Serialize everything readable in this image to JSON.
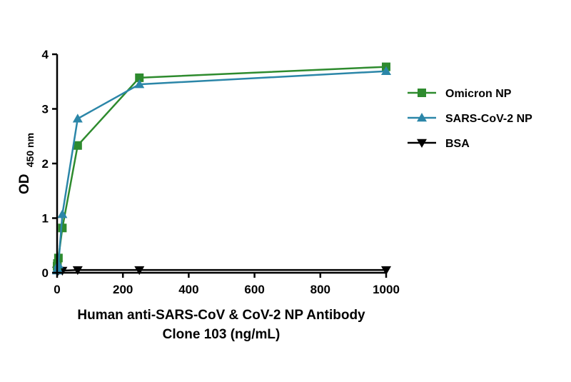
{
  "chart_data": {
    "type": "line",
    "xlabel": [
      "Human anti-SARS-CoV & CoV-2 NP Antibody",
      "Clone 103 (ng/mL)"
    ],
    "ylabel": {
      "main": "OD",
      "sub": "450 nm"
    },
    "xlim": [
      0,
      1000
    ],
    "ylim": [
      0,
      4
    ],
    "xticks": [
      0,
      200,
      400,
      600,
      800,
      1000
    ],
    "yticks": [
      0,
      1,
      2,
      3,
      4
    ],
    "grid": false,
    "legend_position": "right",
    "series": [
      {
        "name": "Omicron NP",
        "color": "#2e8b2e",
        "marker": "square",
        "x": [
          0,
          1,
          4,
          16,
          62.5,
          250,
          1000
        ],
        "y": [
          0.12,
          0.17,
          0.27,
          0.82,
          2.33,
          3.57,
          3.77
        ]
      },
      {
        "name": "SARS-CoV-2 NP",
        "color": "#2b86a8",
        "marker": "triangle-up",
        "x": [
          0,
          1,
          4,
          16,
          62.5,
          250,
          1000
        ],
        "y": [
          0.04,
          0.08,
          0.15,
          1.07,
          2.82,
          3.45,
          3.69
        ]
      },
      {
        "name": "BSA",
        "color": "#000000",
        "marker": "triangle-down",
        "x": [
          0,
          1,
          4,
          16,
          62.5,
          250,
          1000
        ],
        "y": [
          0.04,
          0.04,
          0.04,
          0.04,
          0.05,
          0.05,
          0.05
        ]
      }
    ]
  }
}
